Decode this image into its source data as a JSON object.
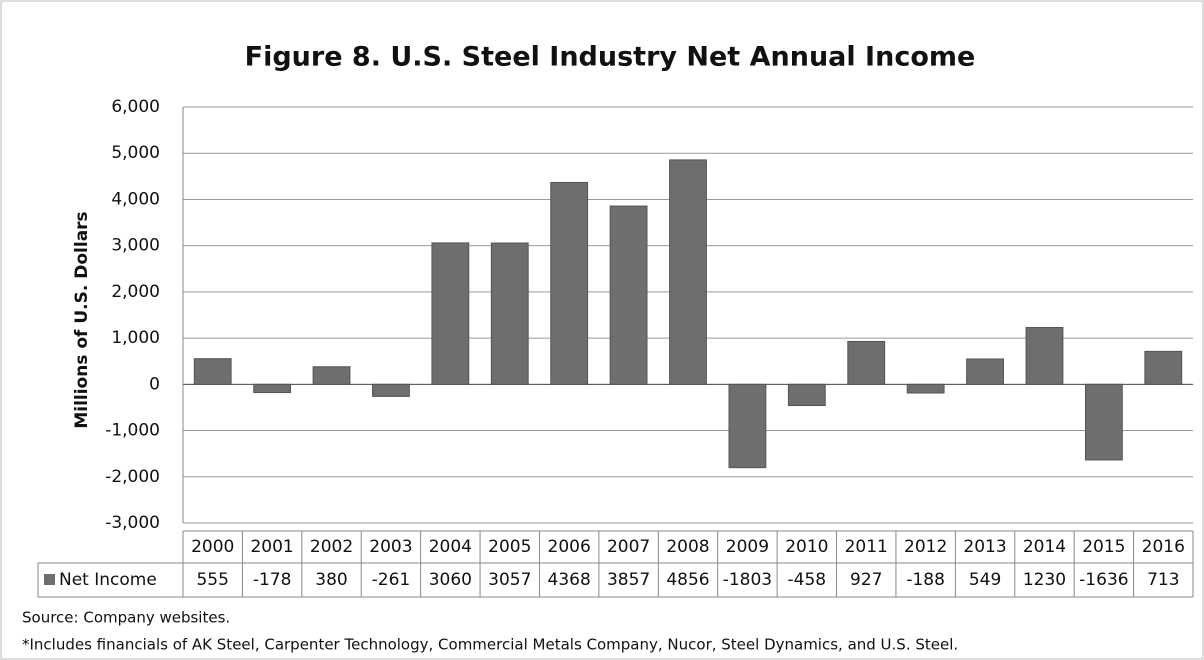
{
  "chart_data": {
    "type": "bar",
    "title": "Figure 8. U.S. Steel Industry Net Annual Income",
    "y_label": "Millions of U.S. Dollars",
    "categories": [
      "2000",
      "2001",
      "2002",
      "2003",
      "2004",
      "2005",
      "2006",
      "2007",
      "2008",
      "2009",
      "2010",
      "2011",
      "2012",
      "2013",
      "2014",
      "2015",
      "2016"
    ],
    "series": [
      {
        "name": "Net Income",
        "color": "#6e6e6e",
        "values": [
          555,
          -178,
          380,
          -261,
          3060,
          3057,
          4368,
          3857,
          4856,
          -1803,
          -458,
          927,
          -188,
          549,
          1230,
          -1636,
          713
        ]
      }
    ],
    "ylim": [
      -3000,
      6000
    ],
    "yticks": [
      {
        "value": -3000,
        "label": "-3,000"
      },
      {
        "value": -2000,
        "label": "-2,000"
      },
      {
        "value": -1000,
        "label": "-1,000"
      },
      0,
      {
        "value": 1000,
        "label": "1,000"
      },
      {
        "value": 2000,
        "label": "2,000"
      },
      {
        "value": 3000,
        "label": "3,000"
      },
      {
        "value": 4000,
        "label": "4,000"
      },
      {
        "value": 5000,
        "label": "5,000"
      },
      {
        "value": 6000,
        "label": "6,000"
      }
    ],
    "grid": true,
    "notes": [
      "Source:  Company websites.",
      "*Includes financials of AK Steel, Carpenter Technology, Commercial Metals Company, Nucor, Steel Dynamics, and U.S. Steel."
    ]
  }
}
